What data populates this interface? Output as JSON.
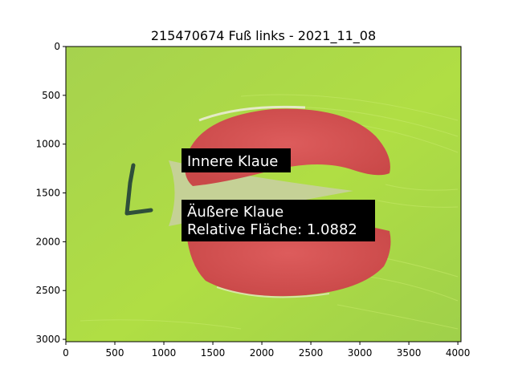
{
  "figure": {
    "title": "215470674 Fuß links - 2021_11_08"
  },
  "axes": {
    "x_ticks": [
      "0",
      "500",
      "1000",
      "1500",
      "2000",
      "2500",
      "3000",
      "3500",
      "4000"
    ],
    "y_ticks": [
      "0",
      "500",
      "1000",
      "1500",
      "2000",
      "2500",
      "3000"
    ],
    "x_range": [
      0,
      4032
    ],
    "y_range": [
      0,
      3024
    ],
    "y_inverted": true
  },
  "image": {
    "background_color": "#a8d64a",
    "highlight_color": "#d85858",
    "mark_letter": "L",
    "mark_color": "#2f4f3a"
  },
  "annotations": [
    {
      "id": "inner",
      "lines": [
        "Innere Klaue"
      ]
    },
    {
      "id": "outer",
      "lines": [
        "Äußere Klaue",
        "Relative Fläche: 1.0882"
      ]
    }
  ]
}
